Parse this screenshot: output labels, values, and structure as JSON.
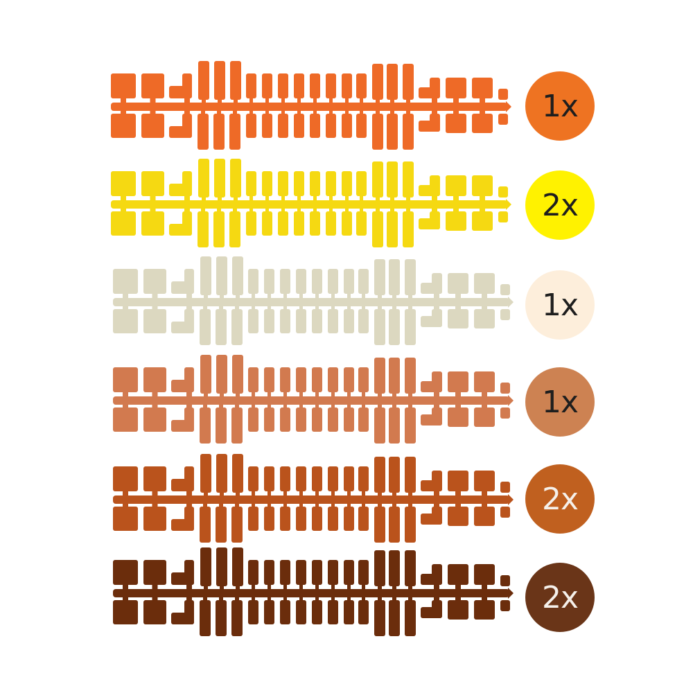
{
  "variants": [
    {
      "color": "#ee6a27",
      "badge_color": "#ee7322",
      "badge_text_color": "#1e1e1e",
      "quantity": "1x"
    },
    {
      "color": "#f5d912",
      "badge_color": "#fff200",
      "badge_text_color": "#1e1e1e",
      "quantity": "2x"
    },
    {
      "color": "#dcd8c0",
      "badge_color": "#fdeedb",
      "badge_text_color": "#1e1e1e",
      "quantity": "1x"
    },
    {
      "color": "#d27a4f",
      "badge_color": "#cd8252",
      "badge_text_color": "#1e1e1e",
      "quantity": "1x"
    },
    {
      "color": "#ba531c",
      "badge_color": "#c0601f",
      "badge_text_color": "#f5f0ea",
      "quantity": "2x"
    },
    {
      "color": "#6b2d0c",
      "badge_color": "#6a3518",
      "badge_text_color": "#f5f0ea",
      "quantity": "2x"
    }
  ]
}
